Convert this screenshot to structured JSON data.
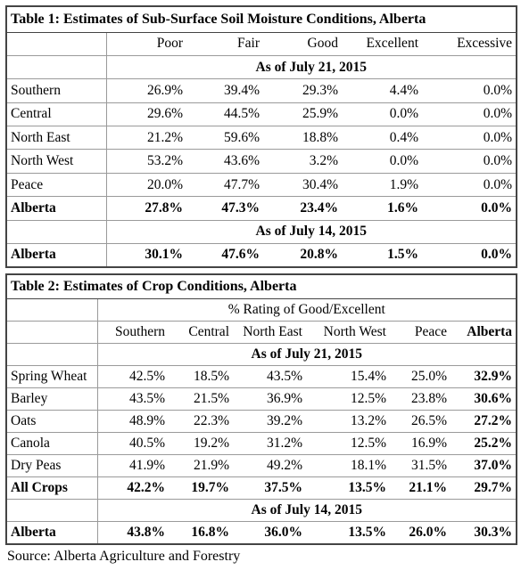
{
  "table1": {
    "title": "Table 1: Estimates of Sub-Surface Soil Moisture Conditions, Alberta",
    "columns": [
      "Poor",
      "Fair",
      "Good",
      "Excellent",
      "Excessive"
    ],
    "sections": [
      {
        "heading": "As of July 21, 2015",
        "rows": [
          [
            "Southern",
            "26.9%",
            "39.4%",
            "29.3%",
            "4.4%",
            "0.0%"
          ],
          [
            "Central",
            "29.6%",
            "44.5%",
            "25.9%",
            "0.0%",
            "0.0%"
          ],
          [
            "North East",
            "21.2%",
            "59.6%",
            "18.8%",
            "0.4%",
            "0.0%"
          ],
          [
            "North West",
            "53.2%",
            "43.6%",
            "3.2%",
            "0.0%",
            "0.0%"
          ],
          [
            "Peace",
            "20.0%",
            "47.7%",
            "30.4%",
            "1.9%",
            "0.0%"
          ],
          [
            "Alberta",
            "27.8%",
            "47.3%",
            "23.4%",
            "1.6%",
            "0.0%"
          ]
        ]
      },
      {
        "heading": "As of July 14, 2015",
        "rows": [
          [
            "Alberta",
            "30.1%",
            "47.6%",
            "20.8%",
            "1.5%",
            "0.0%"
          ]
        ]
      }
    ]
  },
  "table2": {
    "title": "Table 2: Estimates of Crop Conditions, Alberta",
    "group_header": "% Rating of Good/Excellent",
    "columns": [
      "Southern",
      "Central",
      "North East",
      "North West",
      "Peace",
      "Alberta"
    ],
    "sections": [
      {
        "heading": "As of July 21, 2015",
        "rows": [
          [
            "Spring Wheat",
            "42.5%",
            "18.5%",
            "43.5%",
            "15.4%",
            "25.0%",
            "32.9%"
          ],
          [
            "Barley",
            "43.5%",
            "21.5%",
            "36.9%",
            "12.5%",
            "23.8%",
            "30.6%"
          ],
          [
            "Oats",
            "48.9%",
            "22.3%",
            "39.2%",
            "13.2%",
            "26.5%",
            "27.2%"
          ],
          [
            "Canola",
            "40.5%",
            "19.2%",
            "31.2%",
            "12.5%",
            "16.9%",
            "25.2%"
          ],
          [
            "Dry Peas",
            "41.9%",
            "21.9%",
            "49.2%",
            "18.1%",
            "31.5%",
            "37.0%"
          ],
          [
            "All Crops",
            "42.2%",
            "19.7%",
            "37.5%",
            "13.5%",
            "21.1%",
            "29.7%"
          ]
        ]
      },
      {
        "heading": "As of July 14, 2015",
        "rows": [
          [
            "Alberta",
            "43.8%",
            "16.8%",
            "36.0%",
            "13.5%",
            "26.0%",
            "30.3%"
          ]
        ]
      }
    ]
  },
  "source": "Source: Alberta Agriculture and Forestry"
}
